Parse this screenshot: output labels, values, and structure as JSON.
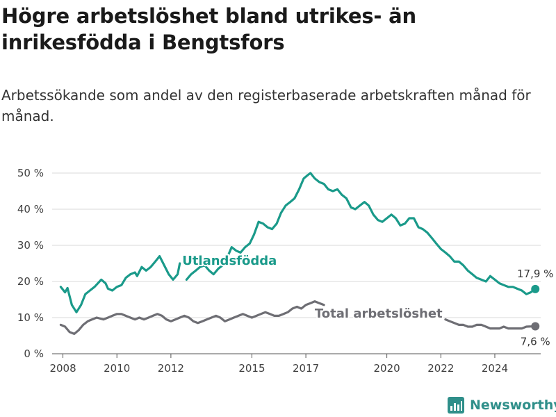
{
  "header": {
    "title": "Högre arbetslöshet bland utrikes- än inrikesfödda i Bengtsfors",
    "subtitle": "Arbetssökande som andel av den registerbaserade arbetskraften månad för månad."
  },
  "brand": {
    "name": "Newsworthy",
    "icon": "bar-chart-logo-icon",
    "color": "#2f8f8a"
  },
  "chart_data": {
    "type": "line",
    "title": "Högre arbetslöshet bland utrikes- än inrikesfödda i Bengtsfors",
    "subtitle": "Arbetssökande som andel av den registerbaserade arbetskraften månad för månad.",
    "xlabel": "",
    "ylabel": "",
    "xlim": [
      2007.6,
      2025.7
    ],
    "ylim": [
      0,
      50
    ],
    "yticks": [
      0,
      10,
      20,
      30,
      40,
      50
    ],
    "ytick_labels": [
      "0 %",
      "10 %",
      "20 %",
      "30 %",
      "40 %",
      "50 %"
    ],
    "xticks": [
      2008,
      2010,
      2012,
      2015,
      2017,
      2020,
      2022,
      2024
    ],
    "xtick_labels": [
      "2008",
      "2010",
      "2012",
      "2015",
      "2017",
      "2020",
      "2022",
      "2024"
    ],
    "grid": "horizontal",
    "legend": "inline labels",
    "series": [
      {
        "name": "Utlandsfödda",
        "color": "#1a9a8a",
        "end_label": "17,9 %",
        "points": [
          [
            2007.92,
            18.5
          ],
          [
            2008.08,
            17.0
          ],
          [
            2008.17,
            18.2
          ],
          [
            2008.33,
            13.5
          ],
          [
            2008.5,
            11.5
          ],
          [
            2008.67,
            13.5
          ],
          [
            2008.83,
            16.5
          ],
          [
            2009.0,
            17.5
          ],
          [
            2009.17,
            18.5
          ],
          [
            2009.42,
            20.5
          ],
          [
            2009.58,
            19.5
          ],
          [
            2009.67,
            18.0
          ],
          [
            2009.83,
            17.5
          ],
          [
            2010.0,
            18.5
          ],
          [
            2010.17,
            19.0
          ],
          [
            2010.33,
            21.0
          ],
          [
            2010.5,
            22.0
          ],
          [
            2010.67,
            22.5
          ],
          [
            2010.75,
            21.5
          ],
          [
            2010.92,
            24.0
          ],
          [
            2011.08,
            23.0
          ],
          [
            2011.25,
            24.0
          ],
          [
            2011.42,
            25.5
          ],
          [
            2011.58,
            27.0
          ],
          [
            2011.75,
            24.5
          ],
          [
            2011.92,
            22.0
          ],
          [
            2012.08,
            20.5
          ],
          [
            2012.25,
            22.0
          ],
          [
            2012.33,
            25.0
          ],
          [
            2012.5,
            null
          ],
          [
            2012.58,
            20.5
          ],
          [
            2012.75,
            22.0
          ],
          [
            2012.92,
            23.0
          ],
          [
            2013.08,
            24.0
          ],
          [
            2013.25,
            24.5
          ],
          [
            2013.42,
            23.0
          ],
          [
            2013.58,
            22.0
          ],
          [
            2013.75,
            23.5
          ],
          [
            2013.92,
            24.5
          ],
          [
            2014.08,
            26.5
          ],
          [
            2014.25,
            29.5
          ],
          [
            2014.42,
            28.5
          ],
          [
            2014.58,
            28.0
          ],
          [
            2014.75,
            29.5
          ],
          [
            2014.92,
            30.5
          ],
          [
            2015.08,
            33.0
          ],
          [
            2015.25,
            36.5
          ],
          [
            2015.42,
            36.0
          ],
          [
            2015.58,
            35.0
          ],
          [
            2015.75,
            34.5
          ],
          [
            2015.92,
            36.0
          ],
          [
            2016.08,
            39.0
          ],
          [
            2016.25,
            41.0
          ],
          [
            2016.42,
            42.0
          ],
          [
            2016.58,
            43.0
          ],
          [
            2016.75,
            45.5
          ],
          [
            2016.92,
            48.5
          ],
          [
            2017.08,
            49.5
          ],
          [
            2017.17,
            50.0
          ],
          [
            2017.33,
            48.5
          ],
          [
            2017.5,
            47.5
          ],
          [
            2017.67,
            47.0
          ],
          [
            2017.83,
            45.5
          ],
          [
            2018.0,
            45.0
          ],
          [
            2018.17,
            45.5
          ],
          [
            2018.33,
            44.0
          ],
          [
            2018.5,
            43.0
          ],
          [
            2018.67,
            40.5
          ],
          [
            2018.83,
            40.0
          ],
          [
            2019.0,
            41.0
          ],
          [
            2019.17,
            42.0
          ],
          [
            2019.33,
            41.0
          ],
          [
            2019.5,
            38.5
          ],
          [
            2019.67,
            37.0
          ],
          [
            2019.83,
            36.5
          ],
          [
            2020.0,
            37.5
          ],
          [
            2020.17,
            38.5
          ],
          [
            2020.33,
            37.5
          ],
          [
            2020.5,
            35.5
          ],
          [
            2020.67,
            36.0
          ],
          [
            2020.83,
            37.5
          ],
          [
            2021.0,
            37.5
          ],
          [
            2021.17,
            35.0
          ],
          [
            2021.33,
            34.5
          ],
          [
            2021.5,
            33.5
          ],
          [
            2021.67,
            32.0
          ],
          [
            2021.83,
            30.5
          ],
          [
            2022.0,
            29.0
          ],
          [
            2022.17,
            28.0
          ],
          [
            2022.33,
            27.0
          ],
          [
            2022.5,
            25.5
          ],
          [
            2022.67,
            25.5
          ],
          [
            2022.83,
            24.5
          ],
          [
            2023.0,
            23.0
          ],
          [
            2023.17,
            22.0
          ],
          [
            2023.33,
            21.0
          ],
          [
            2023.5,
            20.5
          ],
          [
            2023.67,
            20.0
          ],
          [
            2023.83,
            21.5
          ],
          [
            2024.0,
            20.5
          ],
          [
            2024.17,
            19.5
          ],
          [
            2024.33,
            19.0
          ],
          [
            2024.5,
            18.5
          ],
          [
            2024.67,
            18.5
          ],
          [
            2024.83,
            18.0
          ],
          [
            2025.0,
            17.5
          ],
          [
            2025.17,
            16.5
          ],
          [
            2025.33,
            17.0
          ],
          [
            2025.5,
            17.9
          ]
        ]
      },
      {
        "name": "Total arbetslöshet",
        "color": "#6e6e74",
        "end_label": "7,6 %",
        "points": [
          [
            2007.92,
            8.0
          ],
          [
            2008.08,
            7.5
          ],
          [
            2008.25,
            6.0
          ],
          [
            2008.42,
            5.5
          ],
          [
            2008.58,
            6.5
          ],
          [
            2008.75,
            8.0
          ],
          [
            2008.92,
            9.0
          ],
          [
            2009.08,
            9.5
          ],
          [
            2009.25,
            10.0
          ],
          [
            2009.5,
            9.5
          ],
          [
            2009.67,
            10.0
          ],
          [
            2009.83,
            10.5
          ],
          [
            2010.0,
            11.0
          ],
          [
            2010.17,
            11.0
          ],
          [
            2010.33,
            10.5
          ],
          [
            2010.5,
            10.0
          ],
          [
            2010.67,
            9.5
          ],
          [
            2010.83,
            10.0
          ],
          [
            2011.0,
            9.5
          ],
          [
            2011.17,
            10.0
          ],
          [
            2011.33,
            10.5
          ],
          [
            2011.5,
            11.0
          ],
          [
            2011.67,
            10.5
          ],
          [
            2011.83,
            9.5
          ],
          [
            2012.0,
            9.0
          ],
          [
            2012.17,
            9.5
          ],
          [
            2012.33,
            10.0
          ],
          [
            2012.5,
            10.5
          ],
          [
            2012.67,
            10.0
          ],
          [
            2012.83,
            9.0
          ],
          [
            2013.0,
            8.5
          ],
          [
            2013.17,
            9.0
          ],
          [
            2013.33,
            9.5
          ],
          [
            2013.5,
            10.0
          ],
          [
            2013.67,
            10.5
          ],
          [
            2013.83,
            10.0
          ],
          [
            2014.0,
            9.0
          ],
          [
            2014.17,
            9.5
          ],
          [
            2014.33,
            10.0
          ],
          [
            2014.5,
            10.5
          ],
          [
            2014.67,
            11.0
          ],
          [
            2014.83,
            10.5
          ],
          [
            2015.0,
            10.0
          ],
          [
            2015.17,
            10.5
          ],
          [
            2015.33,
            11.0
          ],
          [
            2015.5,
            11.5
          ],
          [
            2015.67,
            11.0
          ],
          [
            2015.83,
            10.5
          ],
          [
            2016.0,
            10.5
          ],
          [
            2016.17,
            11.0
          ],
          [
            2016.33,
            11.5
          ],
          [
            2016.5,
            12.5
          ],
          [
            2016.67,
            13.0
          ],
          [
            2016.83,
            12.5
          ],
          [
            2017.0,
            13.5
          ],
          [
            2017.17,
            14.0
          ],
          [
            2017.33,
            14.5
          ],
          [
            2017.5,
            14.0
          ],
          [
            2017.67,
            13.5
          ],
          [
            2017.75,
            null
          ],
          [
            2022.17,
            9.5
          ],
          [
            2022.33,
            9.0
          ],
          [
            2022.5,
            8.5
          ],
          [
            2022.67,
            8.0
          ],
          [
            2022.83,
            8.0
          ],
          [
            2023.0,
            7.5
          ],
          [
            2023.17,
            7.5
          ],
          [
            2023.33,
            8.0
          ],
          [
            2023.5,
            8.0
          ],
          [
            2023.67,
            7.5
          ],
          [
            2023.83,
            7.0
          ],
          [
            2024.0,
            7.0
          ],
          [
            2024.17,
            7.0
          ],
          [
            2024.33,
            7.5
          ],
          [
            2024.5,
            7.0
          ],
          [
            2024.67,
            7.0
          ],
          [
            2024.83,
            7.0
          ],
          [
            2025.0,
            7.0
          ],
          [
            2025.17,
            7.5
          ],
          [
            2025.5,
            7.6
          ]
        ]
      }
    ]
  }
}
